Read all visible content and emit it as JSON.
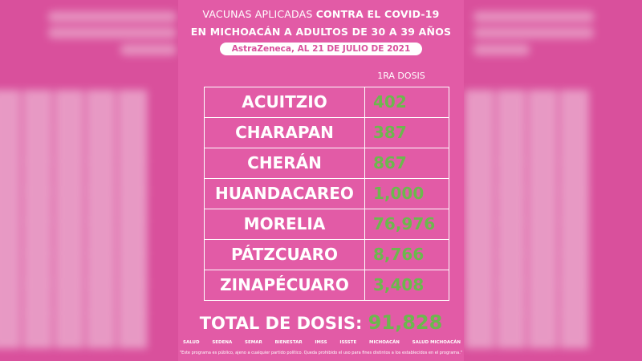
{
  "header": {
    "title_line1_normal": "VACUNAS APLICADAS ",
    "title_line1_bold": "CONTRA EL COVID-19",
    "title_line2": "EN MICHOACÁN A ADULTOS DE 30 A 39 AÑOS",
    "subtitle": "AstraZeneca, AL 21 DE JULIO DE 2021"
  },
  "table": {
    "column_header": "1RA DOSIS",
    "rows": [
      {
        "municipio": "ACUITZIO",
        "dosis": "402"
      },
      {
        "municipio": "CHARAPAN",
        "dosis": "387"
      },
      {
        "municipio": "CHERÁN",
        "dosis": "867"
      },
      {
        "municipio": "HUANDACAREO",
        "dosis": "1,000"
      },
      {
        "municipio": "MORELIA",
        "dosis": "76,976"
      },
      {
        "municipio": "PÁTZCUARO",
        "dosis": "8,766"
      },
      {
        "municipio": "ZINAPÉCUARO",
        "dosis": "3,408"
      }
    ]
  },
  "total": {
    "label": "TOTAL DE DOSIS:",
    "value": "91,828"
  },
  "logos": [
    "SALUD",
    "SEDENA",
    "SEMAR",
    "BIENESTAR",
    "IMSS",
    "ISSSTE",
    "MICHOACÁN",
    "SALUD MICHOACÁN"
  ],
  "footer": "\"Este programa es público, ajeno a cualquier partido político. Queda prohibido el uso para fines distintos a los establecidos en el programa.\"",
  "colors": {
    "background": "#d9509c",
    "card": "#e25ba6",
    "values_green": "#6cb84d",
    "text_white": "#ffffff"
  }
}
